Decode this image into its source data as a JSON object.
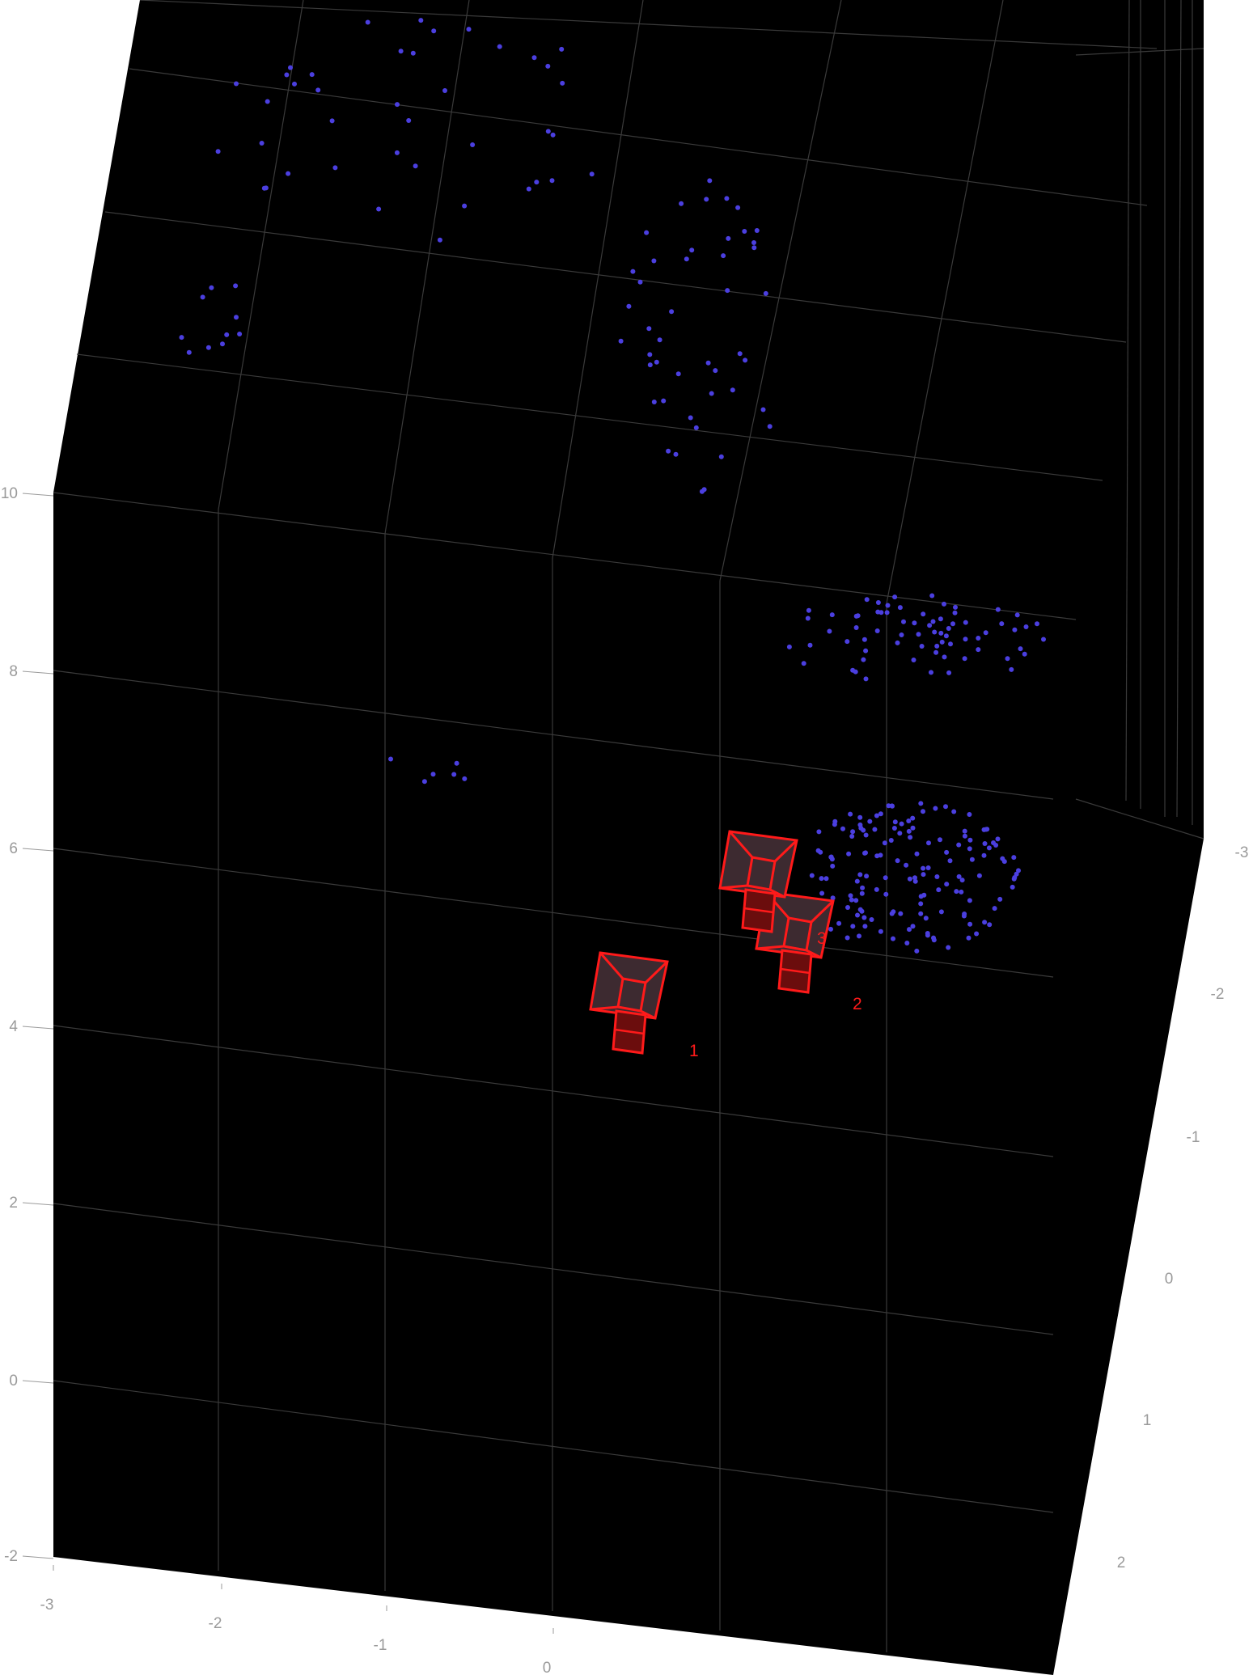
{
  "chart_data": {
    "type": "scatter",
    "style": {
      "background": "#000000",
      "grid_color": "#3a3a3a",
      "tick_color": "#9a9a9a",
      "point_color": "#4b3fe0",
      "camera_color": "#ff1a1a",
      "camera_fill": "#3d2a30"
    },
    "grid": true,
    "z_ticks": [
      "-2",
      "0",
      "2",
      "4",
      "6",
      "8",
      "10"
    ],
    "x_ticks": [
      "-3",
      "-2",
      "-1",
      "0"
    ],
    "y_ticks": [
      "-3",
      "-2",
      "-1",
      "0",
      "1",
      "2"
    ],
    "camera_labels": [
      "1",
      "2",
      "3"
    ],
    "point_count": 325
  }
}
